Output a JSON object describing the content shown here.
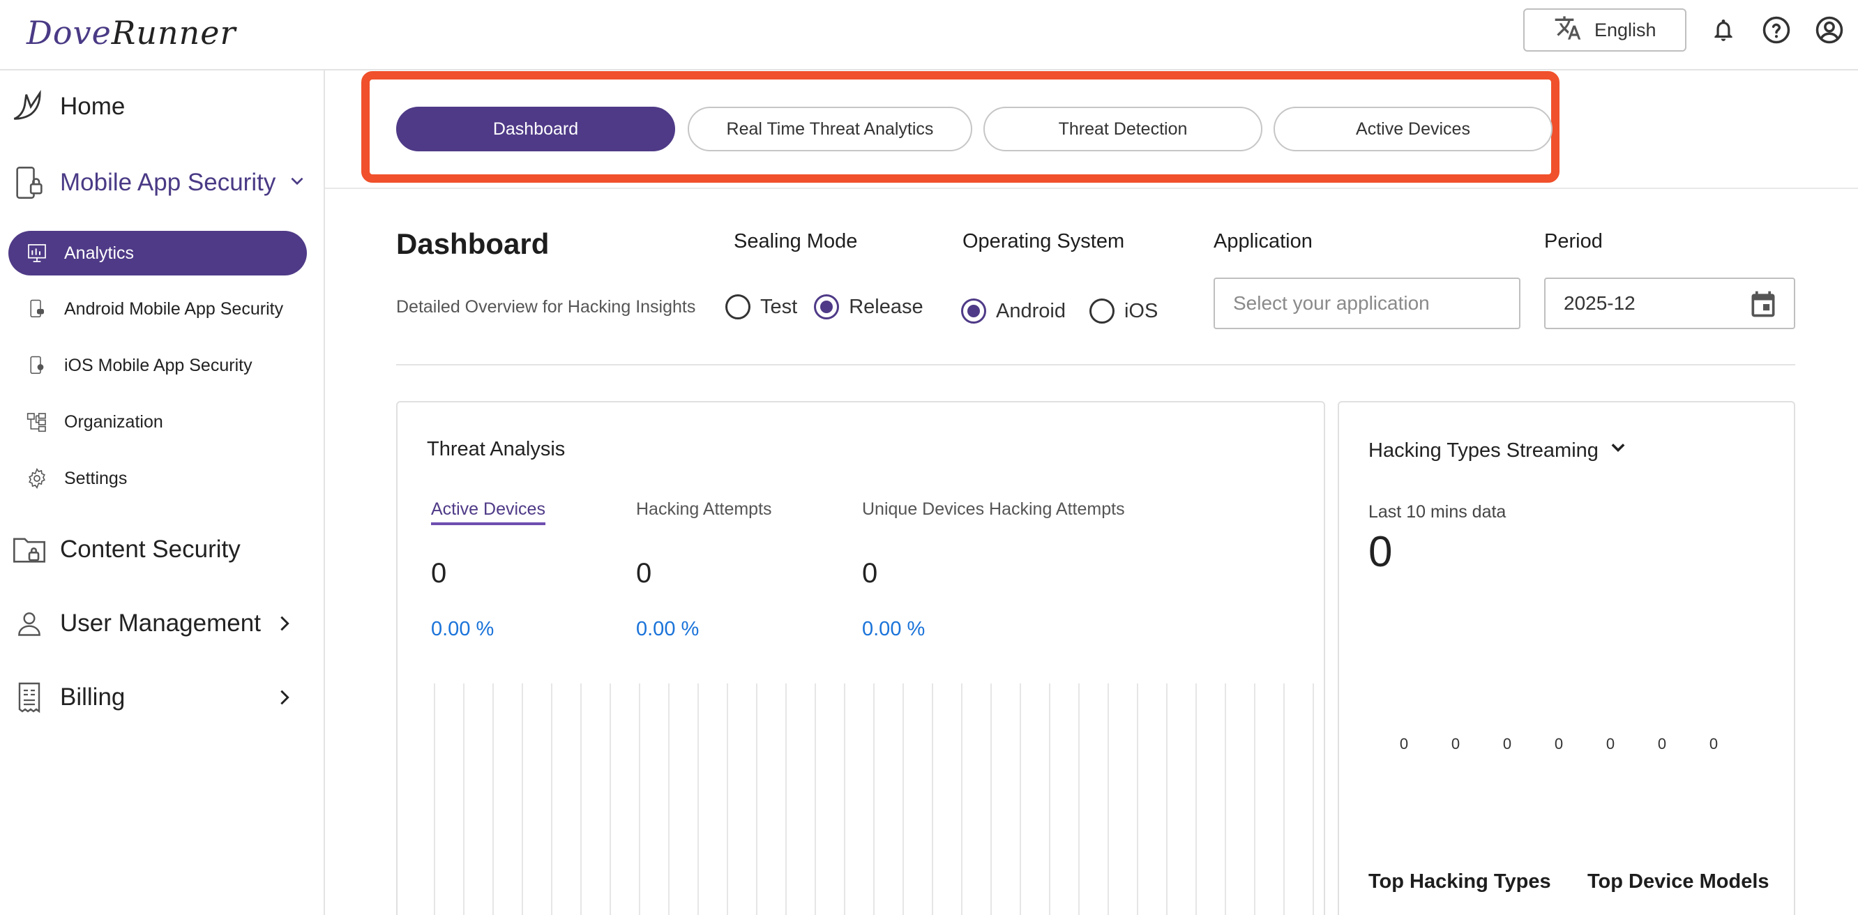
{
  "header": {
    "logo_part1": "Dove",
    "logo_part2": "Runner",
    "language": "English"
  },
  "sidebar": {
    "home": "Home",
    "mobile_app_security": "Mobile App Security",
    "sub_items": [
      "Analytics",
      "Android Mobile App Security",
      "iOS Mobile App Security",
      "Organization",
      "Settings"
    ],
    "content_security": "Content Security",
    "user_management": "User Management",
    "billing": "Billing"
  },
  "tabs": [
    "Dashboard",
    "Real Time Threat Analytics",
    "Threat Detection",
    "Active Devices"
  ],
  "dashboard": {
    "title": "Dashboard",
    "subtitle": "Detailed Overview for Hacking Insights"
  },
  "filters": {
    "sealing_mode_label": "Sealing Mode",
    "sealing_options": [
      "Test",
      "Release"
    ],
    "sealing_selected": "Release",
    "os_label": "Operating System",
    "os_options": [
      "Android",
      "iOS"
    ],
    "os_selected": "Android",
    "application_label": "Application",
    "application_placeholder": "Select your application",
    "period_label": "Period",
    "period_value": "2025-12"
  },
  "threat_analysis": {
    "title": "Threat Analysis",
    "metrics": [
      {
        "label": "Active Devices",
        "value": "0",
        "pct": "0.00 %"
      },
      {
        "label": "Hacking Attempts",
        "value": "0",
        "pct": "0.00 %"
      },
      {
        "label": "Unique Devices Hacking Attempts",
        "value": "0",
        "pct": "0.00 %"
      }
    ]
  },
  "streaming": {
    "title": "Hacking Types Streaming",
    "subtitle": "Last 10 mins data",
    "value": "0",
    "zero_labels": [
      "0",
      "0",
      "0",
      "0",
      "0",
      "0",
      "0"
    ],
    "top_hacking_types": "Top Hacking Types",
    "top_device_models": "Top Device Models"
  },
  "colors": {
    "brand": "#4f3a87",
    "highlight": "#f0502b",
    "percent": "#1a73d9"
  }
}
